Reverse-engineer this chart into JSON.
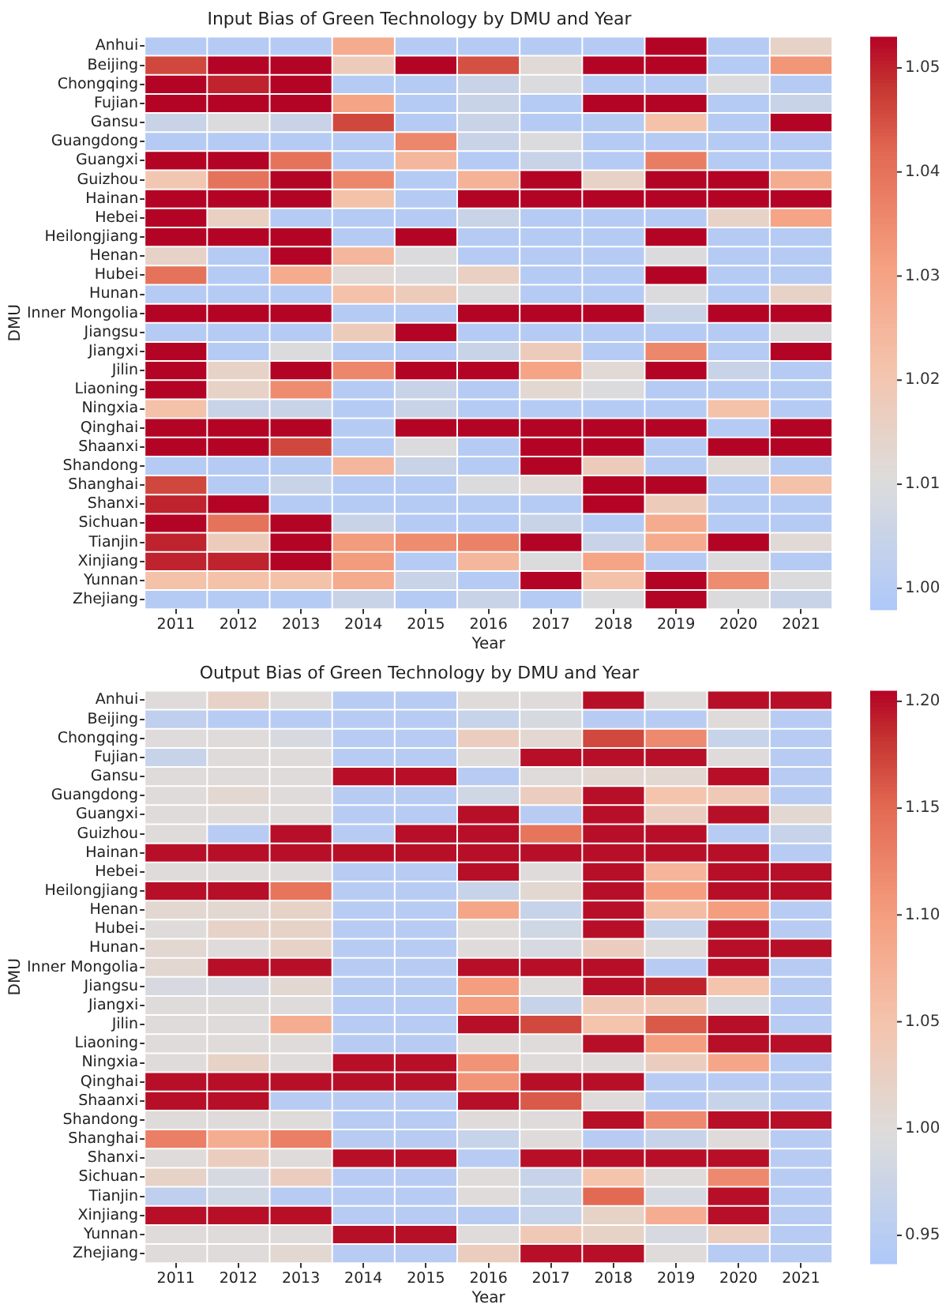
{
  "chart_data": [
    {
      "type": "heatmap",
      "title": "Input Bias of Green Technology by DMU and Year",
      "xlabel": "Year",
      "ylabel": "DMU",
      "categories": [
        "2011",
        "2012",
        "2013",
        "2014",
        "2015",
        "2016",
        "2017",
        "2018",
        "2019",
        "2020",
        "2021"
      ],
      "y_categories": [
        "Anhui",
        "Beijing",
        "Chongqing",
        "Fujian",
        "Gansu",
        "Guangdong",
        "Guangxi",
        "Guizhou",
        "Hainan",
        "Hebei",
        "Heilongjiang",
        "Henan",
        "Hubei",
        "Hunan",
        "Inner Mongolia",
        "Jiangsu",
        "Jiangxi",
        "Jilin",
        "Liaoning",
        "Ningxia",
        "Qinghai",
        "Shaanxi",
        "Shandong",
        "Shanghai",
        "Shanxi",
        "Sichuan",
        "Tianjin",
        "Xinjiang",
        "Yunnan",
        "Zhejiang"
      ],
      "cells": [
        [
          1.0,
          1.0,
          1.0,
          1.028,
          1.0,
          1.0,
          1.0,
          1.0,
          1.053,
          1.0,
          1.015
        ],
        [
          1.046,
          1.053,
          1.053,
          1.018,
          1.053,
          1.045,
          1.012,
          1.053,
          1.053,
          1.0,
          1.033
        ],
        [
          1.053,
          1.05,
          1.053,
          1.0,
          1.0,
          1.005,
          1.01,
          1.0,
          1.0,
          1.01,
          1.0
        ],
        [
          1.053,
          1.053,
          1.053,
          1.03,
          1.0,
          1.005,
          1.0,
          1.053,
          1.053,
          1.0,
          1.005
        ],
        [
          1.005,
          1.01,
          1.005,
          1.046,
          1.0,
          1.005,
          1.0,
          1.0,
          1.022,
          1.0,
          1.053
        ],
        [
          1.0,
          1.0,
          1.0,
          1.0,
          1.036,
          1.005,
          1.01,
          1.0,
          1.0,
          1.0,
          1.0
        ],
        [
          1.053,
          1.053,
          1.04,
          1.0,
          1.025,
          1.0,
          1.005,
          1.0,
          1.038,
          1.0,
          1.0
        ],
        [
          1.02,
          1.04,
          1.053,
          1.036,
          1.0,
          1.026,
          1.053,
          1.015,
          1.053,
          1.053,
          1.028
        ],
        [
          1.053,
          1.053,
          1.053,
          1.022,
          1.0,
          1.053,
          1.053,
          1.053,
          1.053,
          1.053,
          1.053
        ],
        [
          1.053,
          1.016,
          1.0,
          1.0,
          1.0,
          1.005,
          1.0,
          1.0,
          1.0,
          1.015,
          1.03
        ],
        [
          1.053,
          1.053,
          1.053,
          1.0,
          1.053,
          1.0,
          1.0,
          1.0,
          1.053,
          1.0,
          1.0
        ],
        [
          1.015,
          1.0,
          1.053,
          1.025,
          1.01,
          1.0,
          1.0,
          1.0,
          1.01,
          1.0,
          1.0
        ],
        [
          1.04,
          1.0,
          1.028,
          1.012,
          1.01,
          1.016,
          1.0,
          1.0,
          1.053,
          1.0,
          1.0
        ],
        [
          1.0,
          1.0,
          1.0,
          1.022,
          1.018,
          1.01,
          1.0,
          1.0,
          1.01,
          1.0,
          1.015
        ],
        [
          1.053,
          1.053,
          1.053,
          1.0,
          1.0,
          1.053,
          1.053,
          1.053,
          1.005,
          1.053,
          1.053
        ],
        [
          1.0,
          1.0,
          1.0,
          1.018,
          1.053,
          1.0,
          1.0,
          1.0,
          1.0,
          1.0,
          1.01
        ],
        [
          1.053,
          1.0,
          1.01,
          1.0,
          1.0,
          1.005,
          1.018,
          1.0,
          1.036,
          1.0,
          1.053
        ],
        [
          1.053,
          1.015,
          1.053,
          1.036,
          1.053,
          1.053,
          1.03,
          1.012,
          1.053,
          1.005,
          1.0
        ],
        [
          1.053,
          1.015,
          1.035,
          1.0,
          1.005,
          1.0,
          1.013,
          1.01,
          1.0,
          1.0,
          1.0
        ],
        [
          1.022,
          1.005,
          1.005,
          1.0,
          1.005,
          1.0,
          1.0,
          1.0,
          1.0,
          1.022,
          1.0
        ],
        [
          1.053,
          1.053,
          1.053,
          1.0,
          1.053,
          1.053,
          1.053,
          1.053,
          1.053,
          1.0,
          1.053
        ],
        [
          1.053,
          1.053,
          1.046,
          1.0,
          1.01,
          1.0,
          1.053,
          1.053,
          1.0,
          1.053,
          1.053
        ],
        [
          1.0,
          1.0,
          1.0,
          1.025,
          1.005,
          1.0,
          1.053,
          1.018,
          1.0,
          1.012,
          1.0
        ],
        [
          1.046,
          1.0,
          1.005,
          1.0,
          1.0,
          1.01,
          1.012,
          1.053,
          1.053,
          1.0,
          1.022
        ],
        [
          1.05,
          1.053,
          1.0,
          1.0,
          1.0,
          1.0,
          1.0,
          1.053,
          1.018,
          1.0,
          1.0
        ],
        [
          1.053,
          1.04,
          1.053,
          1.005,
          1.0,
          1.0,
          1.005,
          1.0,
          1.028,
          1.0,
          1.0
        ],
        [
          1.05,
          1.018,
          1.053,
          1.032,
          1.035,
          1.037,
          1.053,
          1.005,
          1.028,
          1.053,
          1.012
        ],
        [
          1.05,
          1.05,
          1.053,
          1.032,
          1.0,
          1.025,
          1.01,
          1.03,
          1.0,
          1.01,
          1.0
        ],
        [
          1.022,
          1.022,
          1.022,
          1.028,
          1.005,
          1.0,
          1.053,
          1.022,
          1.053,
          1.035,
          1.01
        ],
        [
          1.0,
          1.0,
          1.0,
          1.005,
          1.0,
          1.005,
          1.0,
          1.01,
          1.053,
          1.01,
          1.005
        ]
      ],
      "clim": [
        0.998,
        1.053
      ],
      "cticks": [
        {
          "value": 1.0,
          "label": "1.00"
        },
        1.01,
        1.02,
        1.03,
        1.04,
        1.05
      ]
    },
    {
      "type": "heatmap",
      "title": "Output Bias of Green Technology by DMU and Year",
      "xlabel": "Year",
      "ylabel": "DMU",
      "categories": [
        "2011",
        "2012",
        "2013",
        "2014",
        "2015",
        "2016",
        "2017",
        "2018",
        "2019",
        "2020",
        "2021"
      ],
      "y_categories": [
        "Anhui",
        "Beijing",
        "Chongqing",
        "Fujian",
        "Gansu",
        "Guangdong",
        "Guangxi",
        "Guizhou",
        "Hainan",
        "Hebei",
        "Heilongjiang",
        "Henan",
        "Hubei",
        "Hunan",
        "Inner Mongolia",
        "Jiangsu",
        "Jiangxi",
        "Jilin",
        "Liaoning",
        "Ningxia",
        "Qinghai",
        "Shaanxi",
        "Shandong",
        "Shanghai",
        "Shanxi",
        "Sichuan",
        "Tianjin",
        "Xinjiang",
        "Yunnan",
        "Zhejiang"
      ],
      "cells": [
        [
          1.0,
          1.02,
          1.0,
          0.95,
          0.95,
          1.0,
          1.0,
          1.2,
          1.0,
          1.2,
          1.2
        ],
        [
          0.96,
          0.95,
          0.95,
          0.95,
          0.95,
          0.97,
          0.99,
          0.95,
          0.95,
          1.0,
          0.95
        ],
        [
          1.0,
          1.0,
          0.99,
          0.95,
          0.95,
          1.03,
          1.01,
          1.17,
          1.12,
          0.97,
          0.95
        ],
        [
          0.97,
          1.0,
          1.0,
          0.95,
          0.95,
          1.0,
          1.2,
          1.2,
          1.2,
          1.0,
          0.95
        ],
        [
          1.0,
          1.0,
          1.0,
          1.2,
          1.2,
          0.95,
          1.0,
          1.01,
          1.01,
          1.2,
          0.95
        ],
        [
          1.0,
          1.01,
          1.0,
          0.95,
          0.95,
          0.98,
          1.03,
          1.2,
          1.05,
          1.04,
          0.95
        ],
        [
          1.0,
          1.0,
          1.0,
          0.95,
          0.95,
          1.2,
          0.95,
          1.2,
          1.03,
          1.2,
          1.01
        ],
        [
          1.0,
          0.95,
          1.2,
          0.95,
          1.2,
          1.2,
          1.14,
          1.2,
          1.2,
          0.95,
          0.97
        ],
        [
          1.2,
          1.2,
          1.2,
          1.2,
          1.2,
          1.2,
          1.2,
          1.2,
          1.2,
          1.2,
          0.95
        ],
        [
          1.0,
          1.0,
          1.0,
          0.95,
          0.95,
          1.2,
          1.0,
          1.2,
          1.07,
          1.2,
          1.2
        ],
        [
          1.2,
          1.2,
          1.14,
          0.95,
          0.95,
          0.97,
          1.01,
          1.2,
          1.1,
          1.2,
          1.2
        ],
        [
          1.01,
          1.01,
          1.02,
          0.95,
          0.95,
          1.09,
          0.97,
          1.2,
          1.06,
          1.1,
          0.95
        ],
        [
          1.0,
          1.02,
          1.02,
          0.95,
          0.95,
          1.0,
          0.98,
          1.2,
          0.97,
          1.2,
          0.95
        ],
        [
          1.01,
          1.0,
          1.02,
          0.95,
          0.95,
          1.0,
          0.99,
          1.03,
          1.0,
          1.2,
          1.2
        ],
        [
          1.01,
          1.2,
          1.2,
          0.95,
          0.95,
          1.2,
          1.2,
          1.2,
          0.95,
          1.2,
          0.95
        ],
        [
          0.99,
          0.99,
          1.01,
          0.95,
          0.95,
          1.1,
          1.0,
          1.2,
          1.19,
          1.05,
          0.95
        ],
        [
          1.0,
          1.0,
          1.0,
          0.95,
          0.95,
          1.1,
          0.97,
          1.04,
          1.04,
          0.99,
          0.95
        ],
        [
          1.0,
          1.0,
          1.08,
          0.95,
          0.95,
          1.2,
          1.17,
          1.05,
          1.16,
          1.2,
          0.95
        ],
        [
          1.0,
          1.0,
          1.0,
          0.95,
          0.95,
          1.0,
          1.0,
          1.2,
          1.1,
          1.2,
          1.2
        ],
        [
          1.0,
          1.02,
          1.0,
          1.2,
          1.2,
          1.11,
          1.0,
          1.0,
          1.03,
          1.09,
          0.95
        ],
        [
          1.2,
          1.2,
          1.2,
          1.2,
          1.2,
          1.11,
          1.2,
          1.2,
          0.95,
          0.95,
          0.95
        ],
        [
          1.2,
          1.2,
          0.95,
          0.95,
          0.95,
          1.2,
          1.16,
          1.0,
          0.95,
          0.97,
          0.95
        ],
        [
          1.0,
          1.0,
          1.0,
          0.95,
          0.95,
          1.0,
          1.0,
          1.2,
          1.12,
          1.2,
          1.2
        ],
        [
          1.13,
          1.08,
          1.13,
          0.95,
          0.95,
          0.97,
          1.0,
          0.95,
          0.97,
          1.0,
          0.95
        ],
        [
          1.0,
          1.03,
          1.0,
          1.2,
          1.2,
          0.95,
          1.2,
          1.2,
          1.2,
          1.2,
          0.95
        ],
        [
          1.02,
          0.99,
          1.03,
          0.95,
          0.95,
          1.0,
          0.97,
          1.05,
          1.0,
          1.12,
          0.95
        ],
        [
          0.96,
          0.98,
          0.95,
          0.95,
          0.95,
          1.0,
          0.97,
          1.15,
          0.99,
          1.2,
          0.95
        ],
        [
          1.2,
          1.2,
          1.2,
          0.95,
          0.95,
          0.95,
          0.97,
          1.02,
          1.08,
          1.2,
          0.95
        ],
        [
          1.0,
          1.0,
          1.0,
          1.2,
          1.2,
          1.0,
          1.04,
          1.02,
          0.99,
          1.03,
          0.95
        ],
        [
          1.0,
          1.0,
          1.01,
          0.95,
          0.95,
          1.03,
          1.2,
          1.2,
          1.0,
          0.95,
          0.95
        ]
      ],
      "clim": [
        0.937,
        1.205
      ],
      "cticks": [
        0.95,
        {
          "value": 1.0,
          "label": "1.00"
        },
        1.05,
        {
          "value": 1.1,
          "label": "1.10"
        },
        1.15,
        {
          "value": 1.2,
          "label": "1.20"
        }
      ]
    }
  ]
}
